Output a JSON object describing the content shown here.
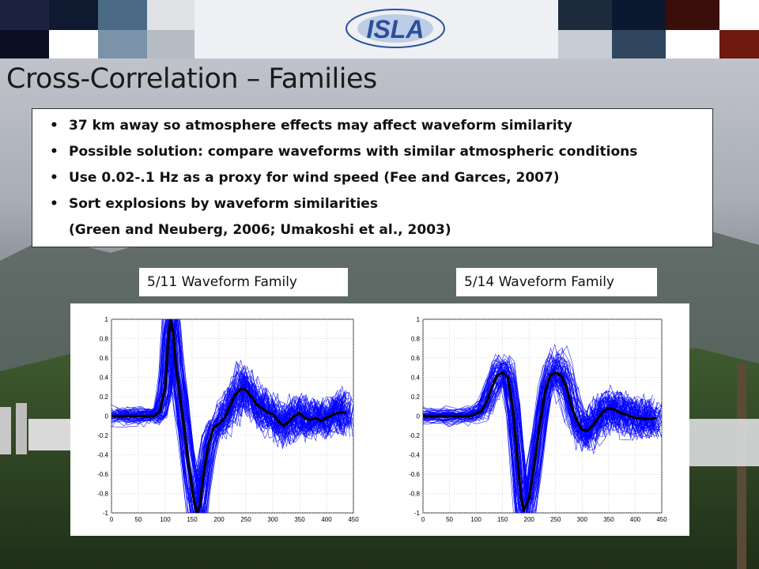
{
  "slide": {
    "title": "Cross-Correlation – Families",
    "bullets": [
      {
        "text": "37 km away so atmosphere effects may affect waveform similarity",
        "bullet": true
      },
      {
        "text": "Possible solution: compare waveforms with similar atmospheric conditions",
        "bullet": true
      },
      {
        "text": "Use 0.02-.1 Hz as a proxy for wind speed (Fee and Garces, 2007)",
        "bullet": true
      },
      {
        "text": "Sort explosions by waveform similarities",
        "bullet": true
      },
      {
        "text": "(Green and Neuberg, 2006; Umakoshi et al., 2003)",
        "bullet": false
      }
    ],
    "colors": {
      "trace": "#0000ff",
      "stack": "#000000"
    }
  },
  "chart_data": [
    {
      "type": "line",
      "title": "5/11 Waveform Family",
      "xlim": [
        0,
        450
      ],
      "ylim": [
        -1,
        1
      ],
      "xticks": [
        0,
        50,
        100,
        150,
        200,
        250,
        300,
        350,
        400,
        450
      ],
      "yticks": [
        -1,
        -0.8,
        -0.6,
        -0.4,
        -0.2,
        0,
        0.2,
        0.4,
        0.6,
        0.8,
        1
      ],
      "grid": true,
      "series": [
        {
          "values_x": [
            0,
            30,
            60,
            80,
            90,
            100,
            105,
            110,
            115,
            120,
            130,
            140,
            150,
            155,
            160,
            165,
            170,
            180,
            190,
            200,
            210,
            220,
            230,
            240,
            250,
            260,
            270,
            280,
            290,
            300,
            310,
            320,
            330,
            340,
            350,
            360,
            370,
            380,
            390,
            400,
            410,
            420,
            430,
            437
          ],
          "values_y": [
            0,
            0,
            0,
            0,
            0.05,
            0.3,
            0.75,
            1.0,
            0.85,
            0.5,
            0.1,
            -0.35,
            -0.75,
            -0.92,
            -1.0,
            -0.9,
            -0.65,
            -0.3,
            -0.12,
            -0.08,
            -0.02,
            0.1,
            0.22,
            0.28,
            0.27,
            0.2,
            0.12,
            0.08,
            0.04,
            0.02,
            -0.05,
            -0.1,
            -0.06,
            0.0,
            0.03,
            -0.02,
            -0.04,
            -0.02,
            -0.05,
            -0.02,
            0.01,
            0.03,
            0.04,
            0.03
          ]
        }
      ]
    },
    {
      "type": "line",
      "title": "5/14 Waveform Family",
      "xlim": [
        0,
        450
      ],
      "ylim": [
        -1,
        1
      ],
      "xticks": [
        0,
        50,
        100,
        150,
        200,
        250,
        300,
        350,
        400,
        450
      ],
      "yticks": [
        -1,
        -0.8,
        -0.6,
        -0.4,
        -0.2,
        0,
        0.2,
        0.4,
        0.6,
        0.8,
        1
      ],
      "grid": true,
      "series": [
        {
          "values_x": [
            0,
            50,
            90,
            110,
            120,
            130,
            140,
            150,
            160,
            170,
            180,
            185,
            190,
            200,
            210,
            220,
            230,
            240,
            250,
            260,
            270,
            280,
            290,
            300,
            310,
            320,
            330,
            340,
            350,
            360,
            370,
            380,
            390,
            400,
            410,
            420,
            430,
            440
          ],
          "values_y": [
            0,
            0,
            0,
            0.05,
            0.15,
            0.3,
            0.42,
            0.45,
            0.4,
            0.05,
            -0.55,
            -0.85,
            -0.98,
            -0.85,
            -0.5,
            -0.1,
            0.25,
            0.42,
            0.45,
            0.42,
            0.3,
            0.1,
            -0.05,
            -0.14,
            -0.15,
            -0.1,
            -0.02,
            0.05,
            0.08,
            0.07,
            0.04,
            0.02,
            0.0,
            -0.02,
            -0.02,
            -0.03,
            -0.03,
            -0.02
          ]
        }
      ]
    }
  ]
}
